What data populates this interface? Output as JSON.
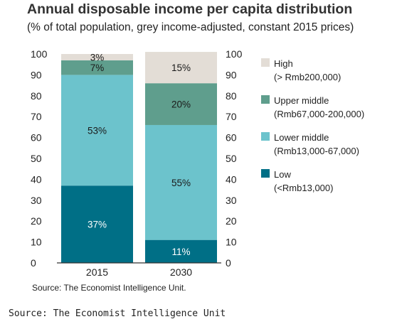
{
  "title": "Annual disposable income per capita distribution",
  "subtitle": "(% of total population, grey income-adjusted, constant 2015 prices)",
  "source_inner": "Source: The Economist Intelligence Unit.",
  "source_outer": "Source: The Economist Intelligence Unit",
  "chart_data": {
    "type": "bar",
    "stacked": true,
    "categories": [
      "2015",
      "2030"
    ],
    "series": [
      {
        "name": "Low",
        "detail": "(<Rmb13,000)",
        "values": [
          37,
          11
        ],
        "labels": [
          "37%",
          "11%"
        ],
        "color": "#006f86",
        "label_color": "#ffffff"
      },
      {
        "name": "Lower middle",
        "detail": "(Rmb13,000-67,000)",
        "values": [
          53,
          55
        ],
        "labels": [
          "53%",
          "55%"
        ],
        "color": "#6cc3cc",
        "label_color": "#1a1a1a"
      },
      {
        "name": "Upper middle",
        "detail": "(Rmb67,000-200,000)",
        "values": [
          7,
          20
        ],
        "labels": [
          "7%",
          "20%"
        ],
        "color": "#5f9e8d",
        "label_color": "#1a1a1a"
      },
      {
        "name": "High",
        "detail": "(> Rmb200,000)",
        "values": [
          3,
          15
        ],
        "labels": [
          "3%",
          "15%"
        ],
        "color": "#e3ddd6",
        "label_color": "#1a1a1a"
      }
    ],
    "ylim": [
      0,
      100
    ],
    "yticks": [
      "0",
      "10",
      "20",
      "30",
      "40",
      "50",
      "60",
      "70",
      "80",
      "90",
      "100"
    ],
    "grid": false,
    "legend_position": "right"
  }
}
